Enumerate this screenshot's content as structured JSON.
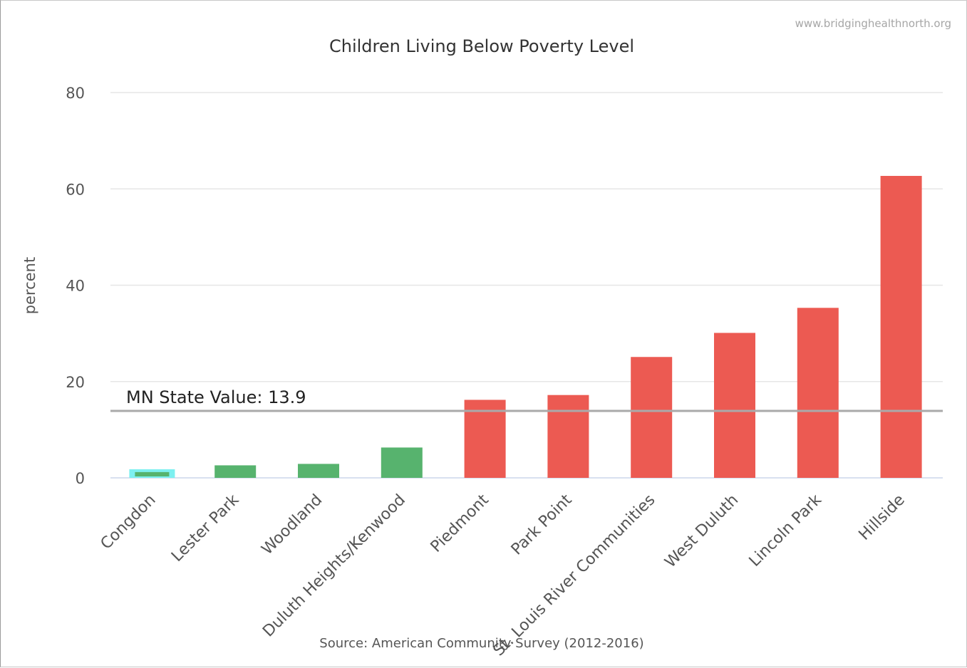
{
  "chart_data": {
    "type": "bar",
    "title": "Children Living Below Poverty Level",
    "credit": "www.bridginghealthnorth.org",
    "source": "Source: American Community Survey (2012-2016)",
    "xlabel": "",
    "ylabel": "percent",
    "ylim": [
      0,
      80
    ],
    "yticks": [
      0,
      20,
      40,
      60,
      80
    ],
    "grid": true,
    "categories": [
      "Congdon",
      "Lester Park",
      "Woodland",
      "Duluth Heights/Kenwood",
      "Piedmont",
      "Park Point",
      "St. Louis River Communities",
      "West Duluth",
      "Lincoln Park",
      "Hillside"
    ],
    "values": [
      1.2,
      2.6,
      2.9,
      6.3,
      16.2,
      17.2,
      25.1,
      30.1,
      35.3,
      62.7
    ],
    "bar_colors": [
      "#57b36e",
      "#57b36e",
      "#57b36e",
      "#57b36e",
      "#ec5a52",
      "#ec5a52",
      "#ec5a52",
      "#ec5a52",
      "#ec5a52",
      "#ec5a52"
    ],
    "highlighted_category": "Congdon",
    "highlight_color": "#7df0f0",
    "reference_line": {
      "label": "MN State Value: 13.9",
      "value": 13.9,
      "color": "#aaaaaa"
    }
  }
}
